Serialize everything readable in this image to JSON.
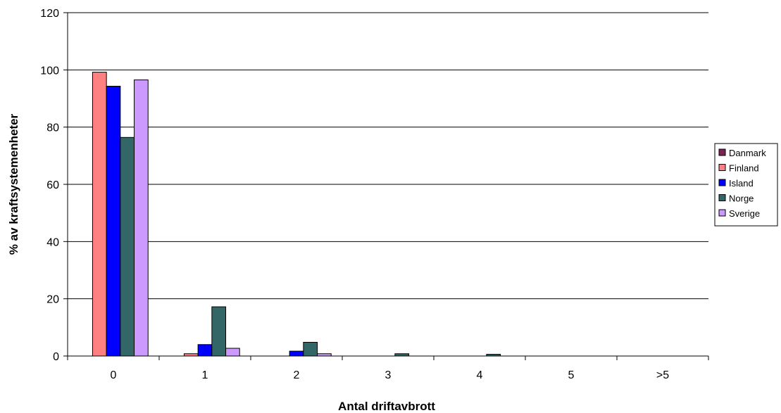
{
  "chart_data": {
    "type": "bar",
    "title": "",
    "xlabel": "Antal driftavbrott",
    "ylabel": "% av kraftsystemenheter",
    "categories": [
      "0",
      "1",
      "2",
      "3",
      "4",
      "5",
      ">5"
    ],
    "ylim": [
      0,
      120
    ],
    "yticks": [
      0,
      20,
      40,
      60,
      80,
      100,
      120
    ],
    "grid": true,
    "legend_position": "right",
    "series": [
      {
        "name": "Danmark",
        "color": "#7b2352",
        "values": [
          0,
          0,
          0,
          0,
          0,
          0,
          0
        ]
      },
      {
        "name": "Finland",
        "color": "#ff8080",
        "values": [
          99.2,
          0.8,
          0,
          0,
          0,
          0,
          0
        ]
      },
      {
        "name": "Island",
        "color": "#0000ff",
        "values": [
          94.3,
          4.0,
          1.7,
          0,
          0,
          0,
          0
        ]
      },
      {
        "name": "Norge",
        "color": "#336666",
        "values": [
          76.4,
          17.2,
          4.8,
          0.8,
          0.6,
          0,
          0
        ]
      },
      {
        "name": "Sverige",
        "color": "#cc99ff",
        "values": [
          96.5,
          2.7,
          0.8,
          0,
          0,
          0,
          0
        ]
      }
    ]
  }
}
